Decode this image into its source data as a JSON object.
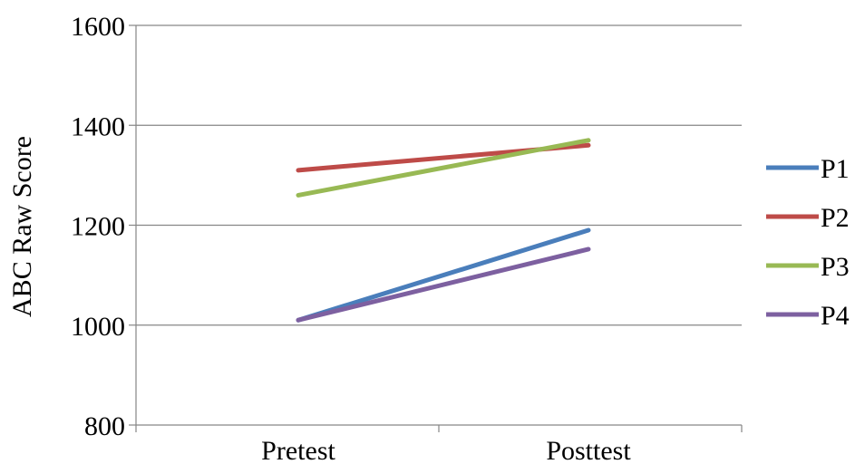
{
  "chart_data": {
    "type": "line",
    "title": "",
    "xlabel": "",
    "ylabel": "ABC Raw Score",
    "categories": [
      "Pretest",
      "Posttest"
    ],
    "ylim": [
      800,
      1600
    ],
    "yticks": [
      800,
      1000,
      1200,
      1400,
      1600
    ],
    "grid": true,
    "legend_position": "right",
    "series": [
      {
        "name": "P1",
        "color": "#4a7ebb",
        "values": [
          1010,
          1190
        ]
      },
      {
        "name": "P2",
        "color": "#be4b48",
        "values": [
          1310,
          1360
        ]
      },
      {
        "name": "P3",
        "color": "#98b954",
        "values": [
          1260,
          1370
        ]
      },
      {
        "name": "P4",
        "color": "#7d60a0",
        "values": [
          1010,
          1152
        ]
      }
    ]
  }
}
